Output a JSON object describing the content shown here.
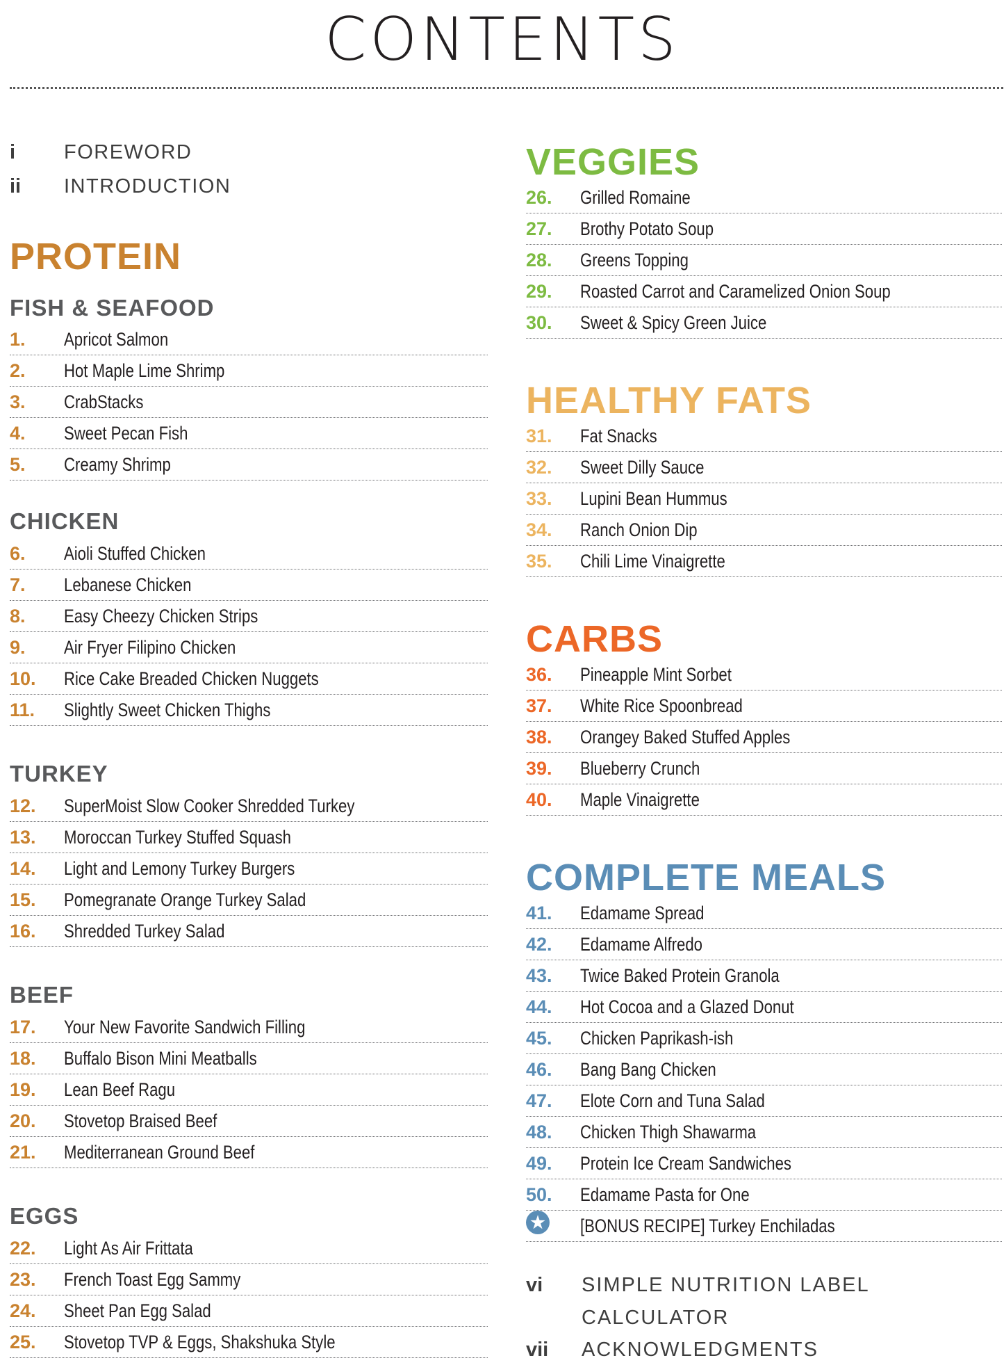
{
  "title": "CONTENTS",
  "colors": {
    "protein": "#c9822f",
    "veggies": "#7dbb42",
    "fats": "#ecb45f",
    "carbs": "#ec6727",
    "meals": "#5a8db6",
    "subheading": "#58595b"
  },
  "front_matter": [
    {
      "num": "i",
      "label": "FOREWORD"
    },
    {
      "num": "ii",
      "label": "INTRODUCTION"
    }
  ],
  "protein": {
    "heading": "PROTEIN",
    "groups": [
      {
        "heading": "FISH & SEAFOOD",
        "items": [
          {
            "n": "1.",
            "t": "Apricot Salmon"
          },
          {
            "n": "2.",
            "t": "Hot Maple Lime Shrimp"
          },
          {
            "n": "3.",
            "t": "CrabStacks"
          },
          {
            "n": "4.",
            "t": "Sweet Pecan Fish"
          },
          {
            "n": "5.",
            "t": "Creamy Shrimp"
          }
        ]
      },
      {
        "heading": "CHICKEN",
        "items": [
          {
            "n": "6.",
            "t": "Aioli Stuffed Chicken"
          },
          {
            "n": "7.",
            "t": "Lebanese Chicken"
          },
          {
            "n": "8.",
            "t": "Easy Cheezy Chicken Strips"
          },
          {
            "n": "9.",
            "t": "Air Fryer Filipino Chicken"
          },
          {
            "n": "10.",
            "t": "Rice Cake Breaded Chicken Nuggets"
          },
          {
            "n": "11.",
            "t": "Slightly Sweet Chicken Thighs"
          }
        ]
      },
      {
        "heading": "TURKEY",
        "items": [
          {
            "n": "12.",
            "t": "SuperMoist Slow Cooker Shredded Turkey"
          },
          {
            "n": "13.",
            "t": "Moroccan Turkey Stuffed Squash"
          },
          {
            "n": "14.",
            "t": "Light and Lemony Turkey Burgers"
          },
          {
            "n": "15.",
            "t": "Pomegranate Orange Turkey Salad"
          },
          {
            "n": "16.",
            "t": "Shredded Turkey Salad"
          }
        ]
      },
      {
        "heading": "BEEF",
        "items": [
          {
            "n": "17.",
            "t": "Your New Favorite Sandwich Filling"
          },
          {
            "n": "18.",
            "t": "Buffalo Bison Mini Meatballs"
          },
          {
            "n": "19.",
            "t": "Lean Beef Ragu"
          },
          {
            "n": "20.",
            "t": "Stovetop Braised Beef"
          },
          {
            "n": "21.",
            "t": "Mediterranean Ground Beef"
          }
        ]
      },
      {
        "heading": "EGGS",
        "items": [
          {
            "n": "22.",
            "t": "Light As Air Frittata"
          },
          {
            "n": "23.",
            "t": "French Toast Egg Sammy"
          },
          {
            "n": "24.",
            "t": "Sheet Pan Egg Salad"
          },
          {
            "n": "25.",
            "t": "Stovetop TVP & Eggs, Shakshuka Style"
          }
        ]
      }
    ]
  },
  "veggies": {
    "heading": "VEGGIES",
    "items": [
      {
        "n": "26.",
        "t": "Grilled Romaine"
      },
      {
        "n": "27.",
        "t": "Brothy Potato Soup"
      },
      {
        "n": "28.",
        "t": "Greens Topping"
      },
      {
        "n": "29.",
        "t": "Roasted Carrot and Caramelized Onion Soup"
      },
      {
        "n": "30.",
        "t": "Sweet & Spicy Green Juice"
      }
    ]
  },
  "healthy_fats": {
    "heading": "HEALTHY FATS",
    "items": [
      {
        "n": "31.",
        "t": "Fat Snacks"
      },
      {
        "n": "32.",
        "t": "Sweet Dilly Sauce"
      },
      {
        "n": "33.",
        "t": "Lupini Bean Hummus"
      },
      {
        "n": "34.",
        "t": "Ranch Onion Dip"
      },
      {
        "n": "35.",
        "t": "Chili Lime Vinaigrette"
      }
    ]
  },
  "carbs": {
    "heading": "CARBS",
    "items": [
      {
        "n": "36.",
        "t": "Pineapple Mint Sorbet"
      },
      {
        "n": "37.",
        "t": "White Rice Spoonbread"
      },
      {
        "n": "38.",
        "t": "Orangey Baked Stuffed Apples"
      },
      {
        "n": "39.",
        "t": "Blueberry Crunch"
      },
      {
        "n": "40.",
        "t": "Maple Vinaigrette"
      }
    ]
  },
  "complete_meals": {
    "heading": "COMPLETE MEALS",
    "items": [
      {
        "n": "41.",
        "t": "Edamame Spread"
      },
      {
        "n": "42.",
        "t": "Edamame Alfredo"
      },
      {
        "n": "43.",
        "t": "Twice Baked Protein Granola"
      },
      {
        "n": "44.",
        "t": "Hot Cocoa and a Glazed Donut"
      },
      {
        "n": "45.",
        "t": "Chicken Paprikash-ish"
      },
      {
        "n": "46.",
        "t": "Bang Bang Chicken"
      },
      {
        "n": "47.",
        "t": "Elote Corn and Tuna Salad"
      },
      {
        "n": "48.",
        "t": "Chicken Thigh Shawarma"
      },
      {
        "n": "49.",
        "t": "Protein Ice Cream Sandwiches"
      },
      {
        "n": "50.",
        "t": "Edamame Pasta for One"
      }
    ],
    "bonus": {
      "icon": "star-icon",
      "t": "[BONUS RECIPE]  Turkey Enchiladas"
    }
  },
  "back_matter": [
    {
      "num": "vi",
      "label": "SIMPLE NUTRITION LABEL",
      "label2": "CALCULATOR"
    },
    {
      "num": "vii",
      "label": "ACKNOWLEDGMENTS"
    }
  ]
}
